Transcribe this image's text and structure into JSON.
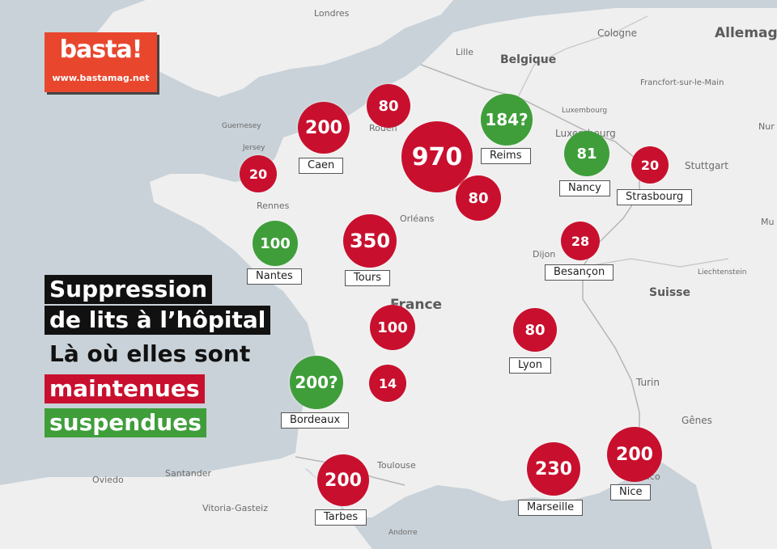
{
  "brand": {
    "name": "basta!",
    "url": "www.bastamag.net",
    "color": "#e8472e"
  },
  "legend": {
    "line1": "Suppression",
    "line2": "de lits à l’hôpital",
    "line3": "Là où elles sont",
    "maintained": "maintenues",
    "suspended": "suspendues",
    "maintained_color": "#c8102e",
    "suspended_color": "#3f9e3a"
  },
  "map_labels": [
    {
      "id": "londres",
      "text": "Londres",
      "kind": "city"
    },
    {
      "id": "lille",
      "text": "Lille",
      "kind": "city"
    },
    {
      "id": "belgique",
      "text": "Belgique",
      "kind": "country"
    },
    {
      "id": "cologne",
      "text": "Cologne",
      "kind": "city"
    },
    {
      "id": "allemagne",
      "text": "Allemag",
      "kind": "country"
    },
    {
      "id": "francfort",
      "text": "Francfort-sur-le-Main",
      "kind": "city"
    },
    {
      "id": "luxembourg1",
      "text": "Luxembourg",
      "kind": "small"
    },
    {
      "id": "luxembourg2",
      "text": "Luxembourg",
      "kind": "city"
    },
    {
      "id": "stuttgart",
      "text": "Stuttgart",
      "kind": "city"
    },
    {
      "id": "nur",
      "text": "Nur",
      "kind": "city"
    },
    {
      "id": "mu",
      "text": "Mu",
      "kind": "city"
    },
    {
      "id": "guernesey",
      "text": "Guernesey",
      "kind": "small"
    },
    {
      "id": "jersey",
      "text": "Jersey",
      "kind": "small"
    },
    {
      "id": "rouen",
      "text": "Rouen",
      "kind": "city"
    },
    {
      "id": "rennes",
      "text": "Rennes",
      "kind": "city"
    },
    {
      "id": "orleans",
      "text": "Orléans",
      "kind": "city"
    },
    {
      "id": "dijon",
      "text": "Dijon",
      "kind": "city"
    },
    {
      "id": "liechtenstein",
      "text": "Liechtenstein",
      "kind": "small"
    },
    {
      "id": "suisse",
      "text": "Suisse",
      "kind": "country"
    },
    {
      "id": "france",
      "text": "France",
      "kind": "country"
    },
    {
      "id": "turin",
      "text": "Turin",
      "kind": "city"
    },
    {
      "id": "genes",
      "text": "Gênes",
      "kind": "city"
    },
    {
      "id": "toulouse",
      "text": "Toulouse",
      "kind": "city"
    },
    {
      "id": "santander",
      "text": "Santander",
      "kind": "city"
    },
    {
      "id": "oviedo",
      "text": "Oviedo",
      "kind": "city"
    },
    {
      "id": "vitoria",
      "text": "Vitoria-Gasteiz",
      "kind": "city"
    },
    {
      "id": "andorre",
      "text": "Andorre",
      "kind": "small"
    },
    {
      "id": "monaco",
      "text": "Monaco",
      "kind": "city"
    }
  ],
  "markers": [
    {
      "id": "caen",
      "value": "200",
      "status": "maintained",
      "label": "Caen"
    },
    {
      "id": "rouen",
      "value": "80",
      "status": "maintained",
      "label": ""
    },
    {
      "id": "reims",
      "value": "184?",
      "status": "suspended",
      "label": "Reims"
    },
    {
      "id": "paris",
      "value": "970",
      "status": "maintained",
      "label": ""
    },
    {
      "id": "nancy",
      "value": "81",
      "status": "suspended",
      "label": "Nancy"
    },
    {
      "id": "strasbourg",
      "value": "20",
      "status": "maintained",
      "label": "Strasbourg"
    },
    {
      "id": "brittany",
      "value": "20",
      "status": "maintained",
      "label": ""
    },
    {
      "id": "champagne",
      "value": "80",
      "status": "maintained",
      "label": ""
    },
    {
      "id": "nantes",
      "value": "100",
      "status": "suspended",
      "label": "Nantes"
    },
    {
      "id": "tours",
      "value": "350",
      "status": "maintained",
      "label": "Tours"
    },
    {
      "id": "besancon",
      "value": "28",
      "status": "maintained",
      "label": "Besançon"
    },
    {
      "id": "limoges",
      "value": "100",
      "status": "maintained",
      "label": ""
    },
    {
      "id": "lyon",
      "value": "80",
      "status": "maintained",
      "label": "Lyon"
    },
    {
      "id": "bordeaux",
      "value": "200?",
      "status": "suspended",
      "label": "Bordeaux"
    },
    {
      "id": "perigueux",
      "value": "14",
      "status": "maintained",
      "label": ""
    },
    {
      "id": "tarbes",
      "value": "200",
      "status": "maintained",
      "label": "Tarbes"
    },
    {
      "id": "marseille",
      "value": "230",
      "status": "maintained",
      "label": "Marseille"
    },
    {
      "id": "nice",
      "value": "200",
      "status": "maintained",
      "label": "Nice"
    }
  ]
}
